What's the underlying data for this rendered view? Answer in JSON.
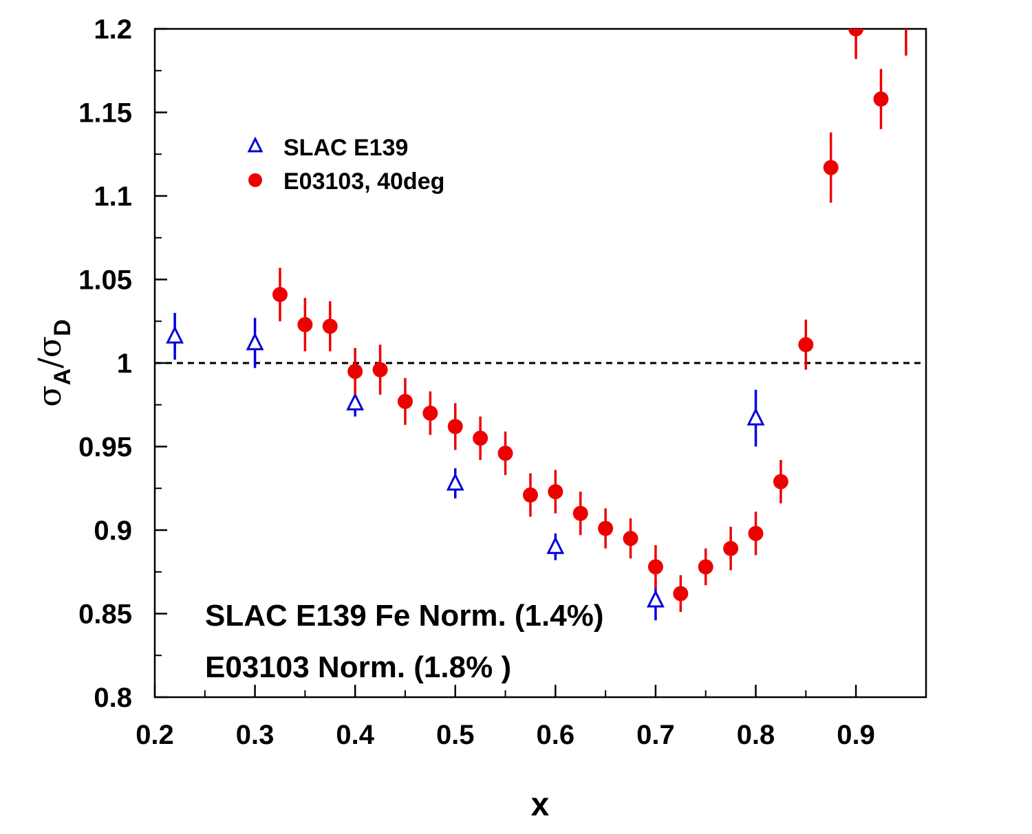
{
  "chart_data": {
    "type": "scatter",
    "xlabel": "x",
    "ylabel": {
      "numerator_symbol": "σ",
      "numerator_sub": "A",
      "slash": "/",
      "denominator_symbol": "σ",
      "denominator_sub": "D"
    },
    "xlim": [
      0.2,
      0.97
    ],
    "ylim": [
      0.8,
      1.2
    ],
    "x_ticks": [
      {
        "value": 0.2,
        "label": "0.2"
      },
      {
        "value": 0.3,
        "label": "0.3"
      },
      {
        "value": 0.4,
        "label": "0.4"
      },
      {
        "value": 0.5,
        "label": "0.5"
      },
      {
        "value": 0.6,
        "label": "0.6"
      },
      {
        "value": 0.7,
        "label": "0.7"
      },
      {
        "value": 0.8,
        "label": "0.8"
      },
      {
        "value": 0.9,
        "label": "0.9"
      }
    ],
    "y_ticks": [
      {
        "value": 0.8,
        "label": "0.8"
      },
      {
        "value": 0.85,
        "label": "0.85"
      },
      {
        "value": 0.9,
        "label": "0.9"
      },
      {
        "value": 0.95,
        "label": "0.95"
      },
      {
        "value": 1.0,
        "label": "1"
      },
      {
        "value": 1.05,
        "label": "1.05"
      },
      {
        "value": 1.1,
        "label": "1.1"
      },
      {
        "value": 1.15,
        "label": "1.15"
      },
      {
        "value": 1.2,
        "label": "1.2"
      }
    ],
    "reference_line": {
      "y": 1.0,
      "style": "dashed"
    },
    "grid": false,
    "legend_position": "top-left",
    "series": [
      {
        "name": "SLAC E139",
        "marker": "open-triangle",
        "color": "#0000dd",
        "points": [
          {
            "x": 0.22,
            "y": 1.016,
            "err": 0.014
          },
          {
            "x": 0.3,
            "y": 1.012,
            "err": 0.015
          },
          {
            "x": 0.4,
            "y": 0.976,
            "err": 0.008
          },
          {
            "x": 0.5,
            "y": 0.928,
            "err": 0.009
          },
          {
            "x": 0.6,
            "y": 0.89,
            "err": 0.008
          },
          {
            "x": 0.7,
            "y": 0.858,
            "err": 0.012
          },
          {
            "x": 0.8,
            "y": 0.967,
            "err": 0.017
          }
        ]
      },
      {
        "name": "E03103, 40deg",
        "marker": "filled-circle",
        "color": "#ee0000",
        "points": [
          {
            "x": 0.325,
            "y": 1.041,
            "err": 0.016
          },
          {
            "x": 0.35,
            "y": 1.023,
            "err": 0.016
          },
          {
            "x": 0.375,
            "y": 1.022,
            "err": 0.015
          },
          {
            "x": 0.4,
            "y": 0.995,
            "err": 0.014
          },
          {
            "x": 0.425,
            "y": 0.996,
            "err": 0.015
          },
          {
            "x": 0.45,
            "y": 0.977,
            "err": 0.014
          },
          {
            "x": 0.475,
            "y": 0.97,
            "err": 0.013
          },
          {
            "x": 0.5,
            "y": 0.962,
            "err": 0.014
          },
          {
            "x": 0.525,
            "y": 0.955,
            "err": 0.013
          },
          {
            "x": 0.55,
            "y": 0.946,
            "err": 0.013
          },
          {
            "x": 0.575,
            "y": 0.921,
            "err": 0.013
          },
          {
            "x": 0.6,
            "y": 0.923,
            "err": 0.013
          },
          {
            "x": 0.625,
            "y": 0.91,
            "err": 0.013
          },
          {
            "x": 0.65,
            "y": 0.901,
            "err": 0.012
          },
          {
            "x": 0.675,
            "y": 0.895,
            "err": 0.012
          },
          {
            "x": 0.7,
            "y": 0.878,
            "err": 0.013
          },
          {
            "x": 0.725,
            "y": 0.862,
            "err": 0.011
          },
          {
            "x": 0.75,
            "y": 0.878,
            "err": 0.011
          },
          {
            "x": 0.775,
            "y": 0.889,
            "err": 0.013
          },
          {
            "x": 0.8,
            "y": 0.898,
            "err": 0.013
          },
          {
            "x": 0.825,
            "y": 0.929,
            "err": 0.013
          },
          {
            "x": 0.85,
            "y": 1.011,
            "err": 0.015
          },
          {
            "x": 0.875,
            "y": 1.117,
            "err": 0.021
          },
          {
            "x": 0.9,
            "y": 1.2,
            "err": 0.018
          },
          {
            "x": 0.925,
            "y": 1.158,
            "err": 0.018
          },
          {
            "x": 0.95,
            "y": 1.212,
            "err": 0.028
          }
        ]
      }
    ],
    "annotations": [
      "SLAC E139 Fe Norm. (1.4%)",
      "E03103 Norm. (1.8% )"
    ]
  }
}
